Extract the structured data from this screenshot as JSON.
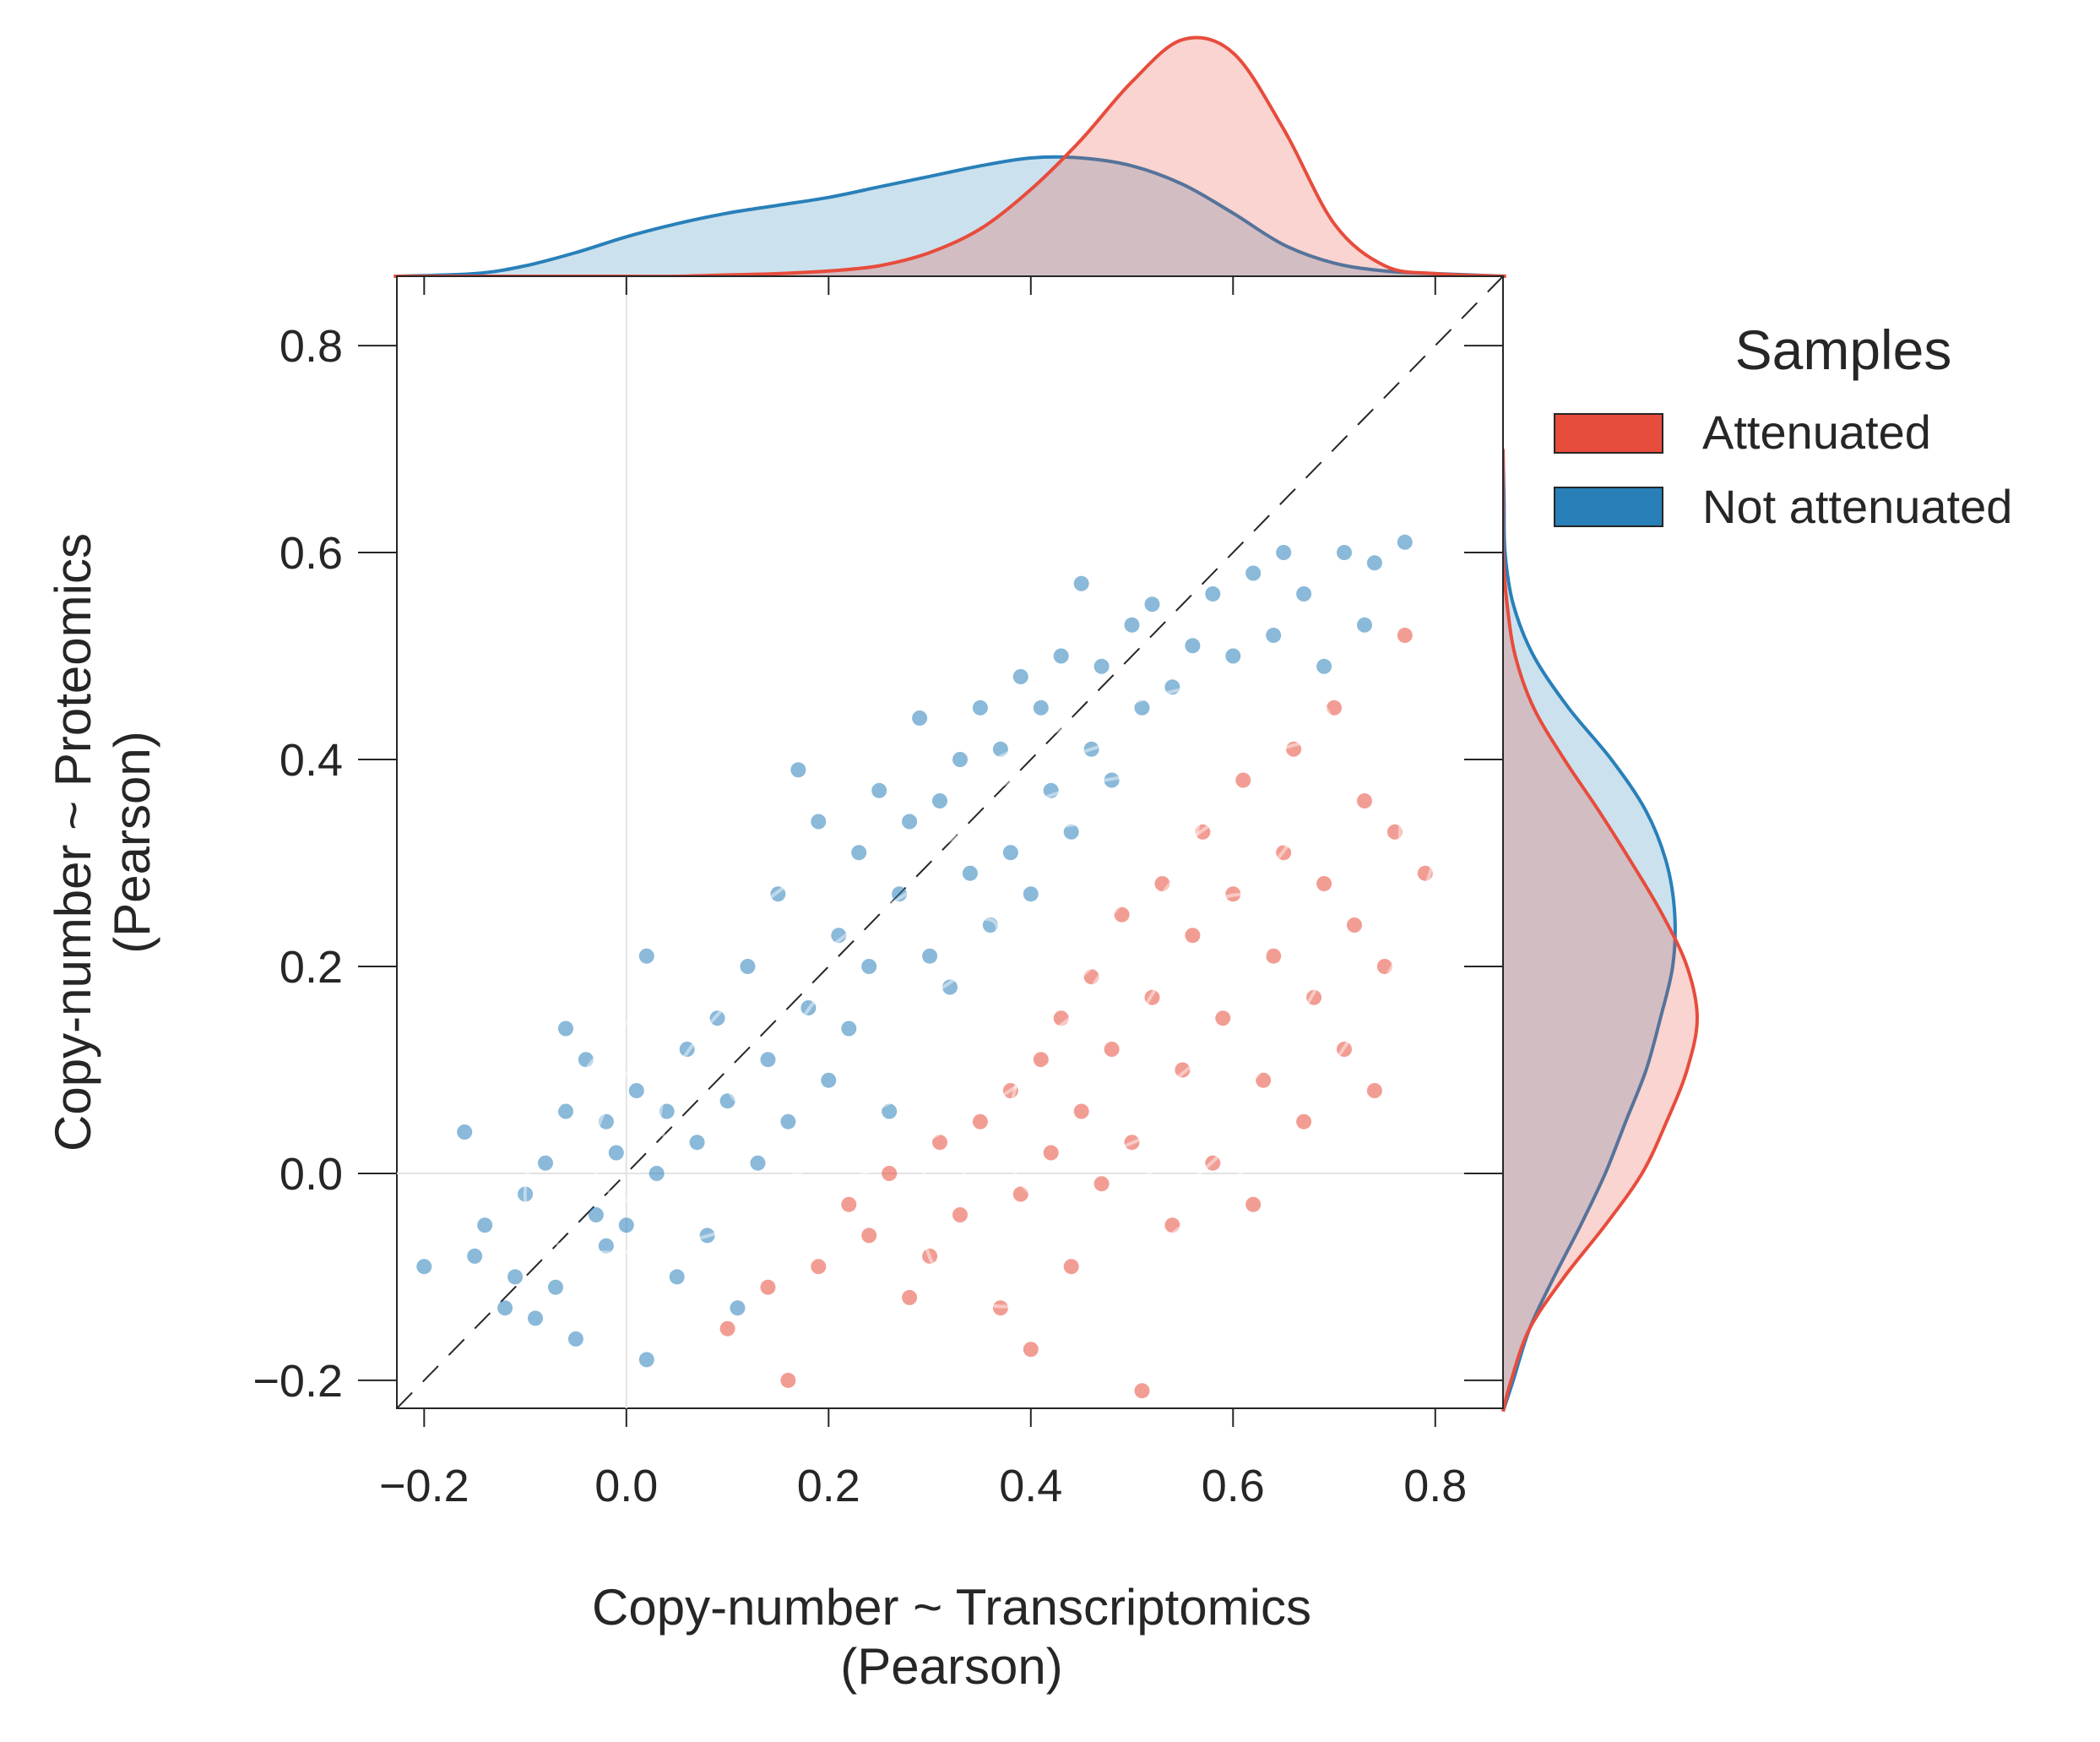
{
  "chart_data": {
    "type": "scatter",
    "subtype": "joint plot with marginal density curves and density contours",
    "xlabel": [
      "Copy-number ~ Transcriptomics",
      "(Pearson)"
    ],
    "ylabel": [
      "Copy-number ~ Proteomics",
      "(Pearson)"
    ],
    "xlim": [
      -0.227,
      0.867
    ],
    "ylim": [
      -0.227,
      0.867
    ],
    "x_ticks": [
      -0.2,
      0.0,
      0.2,
      0.4,
      0.6,
      0.8
    ],
    "y_ticks": [
      -0.2,
      0.0,
      0.2,
      0.4,
      0.6,
      0.8
    ],
    "x_tick_labels": [
      "−0.2",
      "0.0",
      "0.2",
      "0.4",
      "0.6",
      "0.8"
    ],
    "y_tick_labels": [
      "−0.2",
      "0.0",
      "0.2",
      "0.4",
      "0.6",
      "0.8"
    ],
    "grid": false,
    "reference_lines": {
      "diagonal": "y = x",
      "zero_lines": [
        0,
        0
      ]
    },
    "legend": {
      "title": "Samples",
      "placement": "right",
      "entries": [
        {
          "label": "Attenuated",
          "color": "#e74c3c"
        },
        {
          "label": "Not attenuated",
          "color": "#2980b9"
        }
      ]
    },
    "series": [
      {
        "name": "Not attenuated",
        "color": "#2980b9",
        "center": [
          0.3,
          0.2
        ],
        "points": [
          [
            -0.2,
            -0.09
          ],
          [
            -0.16,
            0.04
          ],
          [
            -0.15,
            -0.08
          ],
          [
            -0.14,
            -0.05
          ],
          [
            -0.12,
            -0.13
          ],
          [
            -0.11,
            -0.1
          ],
          [
            -0.1,
            -0.02
          ],
          [
            -0.09,
            -0.14
          ],
          [
            -0.08,
            0.01
          ],
          [
            -0.07,
            -0.11
          ],
          [
            -0.06,
            0.06
          ],
          [
            -0.06,
            0.14
          ],
          [
            -0.05,
            -0.16
          ],
          [
            -0.04,
            0.11
          ],
          [
            -0.03,
            -0.04
          ],
          [
            -0.02,
            0.05
          ],
          [
            -0.02,
            -0.07
          ],
          [
            -0.01,
            0.02
          ],
          [
            0.0,
            -0.05
          ],
          [
            0.01,
            0.08
          ],
          [
            0.02,
            -0.18
          ],
          [
            0.02,
            0.21
          ],
          [
            0.03,
            0.0
          ],
          [
            0.04,
            0.06
          ],
          [
            0.05,
            -0.1
          ],
          [
            0.06,
            0.12
          ],
          [
            0.07,
            0.03
          ],
          [
            0.08,
            -0.06
          ],
          [
            0.09,
            0.15
          ],
          [
            0.1,
            0.07
          ],
          [
            0.11,
            -0.13
          ],
          [
            0.12,
            0.2
          ],
          [
            0.13,
            0.01
          ],
          [
            0.14,
            0.11
          ],
          [
            0.15,
            0.27
          ],
          [
            0.16,
            0.05
          ],
          [
            0.17,
            0.39
          ],
          [
            0.18,
            0.16
          ],
          [
            0.19,
            0.34
          ],
          [
            0.2,
            0.09
          ],
          [
            0.21,
            0.23
          ],
          [
            0.22,
            0.14
          ],
          [
            0.23,
            0.31
          ],
          [
            0.24,
            0.2
          ],
          [
            0.25,
            0.37
          ],
          [
            0.26,
            0.06
          ],
          [
            0.27,
            0.27
          ],
          [
            0.28,
            0.34
          ],
          [
            0.29,
            0.44
          ],
          [
            0.3,
            0.21
          ],
          [
            0.31,
            0.36
          ],
          [
            0.32,
            0.18
          ],
          [
            0.33,
            0.4
          ],
          [
            0.34,
            0.29
          ],
          [
            0.35,
            0.45
          ],
          [
            0.36,
            0.24
          ],
          [
            0.37,
            0.41
          ],
          [
            0.38,
            0.31
          ],
          [
            0.39,
            0.48
          ],
          [
            0.4,
            0.27
          ],
          [
            0.41,
            0.45
          ],
          [
            0.42,
            0.37
          ],
          [
            0.43,
            0.5
          ],
          [
            0.44,
            0.33
          ],
          [
            0.45,
            0.57
          ],
          [
            0.46,
            0.41
          ],
          [
            0.47,
            0.49
          ],
          [
            0.48,
            0.38
          ],
          [
            0.5,
            0.53
          ],
          [
            0.51,
            0.45
          ],
          [
            0.52,
            0.55
          ],
          [
            0.54,
            0.47
          ],
          [
            0.56,
            0.51
          ],
          [
            0.58,
            0.56
          ],
          [
            0.6,
            0.5
          ],
          [
            0.62,
            0.58
          ],
          [
            0.64,
            0.52
          ],
          [
            0.65,
            0.6
          ],
          [
            0.67,
            0.56
          ],
          [
            0.69,
            0.49
          ],
          [
            0.71,
            0.6
          ],
          [
            0.73,
            0.53
          ],
          [
            0.74,
            0.59
          ],
          [
            0.77,
            0.61
          ]
        ]
      },
      {
        "name": "Attenuated",
        "color": "#e74c3c",
        "center": [
          0.55,
          0.17
        ],
        "points": [
          [
            0.1,
            -0.15
          ],
          [
            0.14,
            -0.11
          ],
          [
            0.16,
            -0.2
          ],
          [
            0.19,
            -0.09
          ],
          [
            0.22,
            -0.03
          ],
          [
            0.24,
            -0.06
          ],
          [
            0.26,
            0.0
          ],
          [
            0.28,
            -0.12
          ],
          [
            0.3,
            -0.08
          ],
          [
            0.31,
            0.03
          ],
          [
            0.33,
            -0.04
          ],
          [
            0.35,
            0.05
          ],
          [
            0.37,
            -0.13
          ],
          [
            0.38,
            0.08
          ],
          [
            0.39,
            -0.02
          ],
          [
            0.4,
            -0.17
          ],
          [
            0.41,
            0.11
          ],
          [
            0.42,
            0.02
          ],
          [
            0.43,
            0.15
          ],
          [
            0.44,
            -0.09
          ],
          [
            0.45,
            0.06
          ],
          [
            0.46,
            0.19
          ],
          [
            0.47,
            -0.01
          ],
          [
            0.48,
            0.12
          ],
          [
            0.49,
            0.25
          ],
          [
            0.5,
            0.03
          ],
          [
            0.51,
            -0.21
          ],
          [
            0.52,
            0.17
          ],
          [
            0.53,
            0.28
          ],
          [
            0.54,
            -0.05
          ],
          [
            0.55,
            0.1
          ],
          [
            0.56,
            0.23
          ],
          [
            0.57,
            0.33
          ],
          [
            0.58,
            0.01
          ],
          [
            0.59,
            0.15
          ],
          [
            0.6,
            0.27
          ],
          [
            0.61,
            0.38
          ],
          [
            0.62,
            -0.03
          ],
          [
            0.63,
            0.09
          ],
          [
            0.64,
            0.21
          ],
          [
            0.65,
            0.31
          ],
          [
            0.66,
            0.41
          ],
          [
            0.67,
            0.05
          ],
          [
            0.68,
            0.17
          ],
          [
            0.69,
            0.28
          ],
          [
            0.7,
            0.45
          ],
          [
            0.71,
            0.12
          ],
          [
            0.72,
            0.24
          ],
          [
            0.73,
            0.36
          ],
          [
            0.74,
            0.08
          ],
          [
            0.75,
            0.2
          ],
          [
            0.76,
            0.33
          ],
          [
            0.77,
            0.52
          ],
          [
            0.79,
            0.29
          ]
        ]
      }
    ],
    "marginal_x_density": {
      "x": [
        -0.23,
        -0.15,
        -0.1,
        -0.05,
        0.0,
        0.05,
        0.1,
        0.15,
        0.2,
        0.25,
        0.3,
        0.35,
        0.4,
        0.45,
        0.5,
        0.55,
        0.6,
        0.65,
        0.7,
        0.75,
        0.8,
        0.87
      ],
      "Not attenuated": [
        0.0,
        0.01,
        0.04,
        0.09,
        0.15,
        0.2,
        0.24,
        0.27,
        0.3,
        0.34,
        0.38,
        0.42,
        0.45,
        0.45,
        0.42,
        0.35,
        0.24,
        0.12,
        0.05,
        0.02,
        0.01,
        0.0
      ],
      "Attenuated": [
        0.0,
        0.0,
        0.0,
        0.0,
        0.0,
        0.0,
        0.005,
        0.01,
        0.02,
        0.04,
        0.09,
        0.18,
        0.33,
        0.52,
        0.74,
        0.9,
        0.85,
        0.56,
        0.2,
        0.04,
        0.01,
        0.0
      ]
    },
    "marginal_y_density": {
      "y": [
        -0.23,
        -0.2,
        -0.15,
        -0.1,
        -0.05,
        0.0,
        0.05,
        0.1,
        0.15,
        0.2,
        0.25,
        0.3,
        0.35,
        0.4,
        0.45,
        0.5,
        0.55,
        0.6,
        0.65,
        0.7
      ],
      "Not attenuated": [
        0.0,
        0.05,
        0.13,
        0.25,
        0.38,
        0.5,
        0.6,
        0.7,
        0.77,
        0.83,
        0.84,
        0.8,
        0.7,
        0.53,
        0.32,
        0.15,
        0.05,
        0.01,
        0.005,
        0.0
      ],
      "Attenuated": [
        0.0,
        0.04,
        0.13,
        0.3,
        0.5,
        0.68,
        0.8,
        0.9,
        0.95,
        0.9,
        0.78,
        0.63,
        0.47,
        0.3,
        0.15,
        0.06,
        0.02,
        0.0,
        0.0,
        0.0
      ]
    }
  }
}
